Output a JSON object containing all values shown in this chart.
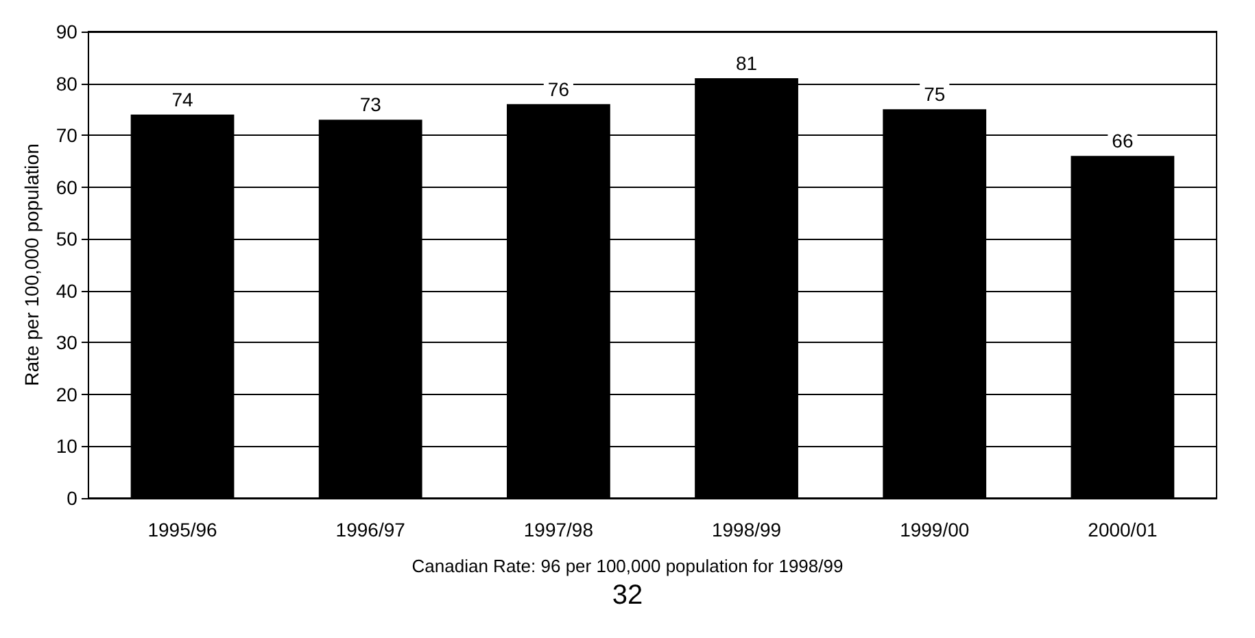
{
  "chart_data": {
    "type": "bar",
    "ylabel": "Rate per 100,000 population",
    "categories": [
      "1995/96",
      "1996/97",
      "1997/98",
      "1998/99",
      "1999/00",
      "2000/01"
    ],
    "values": [
      74,
      73,
      76,
      81,
      75,
      66
    ],
    "color": "#000000",
    "ylim": [
      0,
      90
    ],
    "yticks": [
      0,
      10,
      20,
      30,
      40,
      50,
      60,
      70,
      80,
      90
    ],
    "grid": "y",
    "data_labels": true,
    "annotations": [
      "Canadian Rate: 96 per 100,000 population for 1998/99",
      "32"
    ]
  }
}
